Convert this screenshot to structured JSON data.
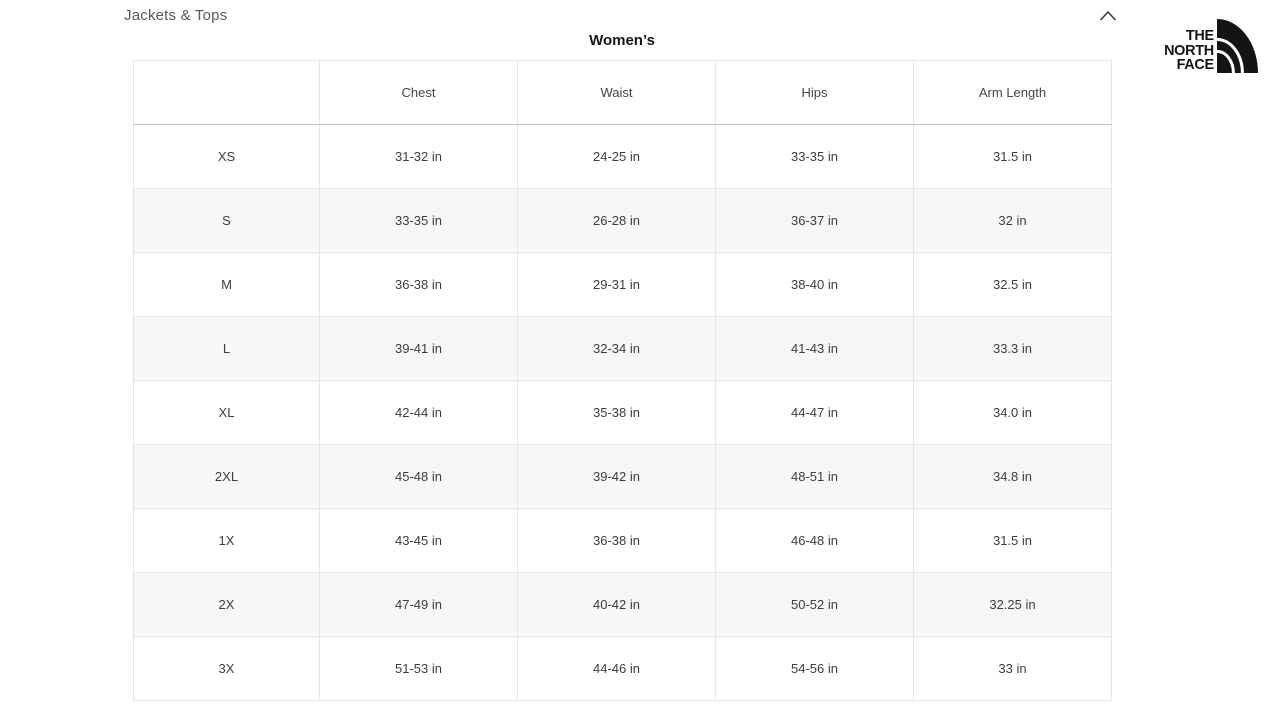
{
  "colors": {
    "stripe_row": "#f7f7f7",
    "cell_border": "#e5e5e5",
    "header_underline": "#c3c3c3",
    "table_text": "#3d3d3d",
    "section_title_text": "#58585a",
    "logo_black": "#141414"
  },
  "section": {
    "title": "Jackets & Tops",
    "collapse_icon": "chevron-up"
  },
  "table": {
    "title": "Women’s",
    "columns": [
      "",
      "Chest",
      "Waist",
      "Hips",
      "Arm Length"
    ],
    "rows": [
      {
        "size": "XS",
        "chest": "31-32 in",
        "waist": "24-25 in",
        "hips": "33-35 in",
        "arm_length": "31.5 in"
      },
      {
        "size": "S",
        "chest": "33-35 in",
        "waist": "26-28 in",
        "hips": "36-37 in",
        "arm_length": "32 in"
      },
      {
        "size": "M",
        "chest": "36-38 in",
        "waist": "29-31 in",
        "hips": "38-40 in",
        "arm_length": "32.5 in"
      },
      {
        "size": "L",
        "chest": "39-41 in",
        "waist": "32-34 in",
        "hips": "41-43 in",
        "arm_length": "33.3 in"
      },
      {
        "size": "XL",
        "chest": "42-44 in",
        "waist": "35-38 in",
        "hips": "44-47 in",
        "arm_length": "34.0 in"
      },
      {
        "size": "2XL",
        "chest": "45-48 in",
        "waist": "39-42 in",
        "hips": "48-51 in",
        "arm_length": "34.8 in"
      },
      {
        "size": "1X",
        "chest": "43-45 in",
        "waist": "36-38 in",
        "hips": "46-48 in",
        "arm_length": "31.5 in"
      },
      {
        "size": "2X",
        "chest": "47-49 in",
        "waist": "40-42 in",
        "hips": "50-52 in",
        "arm_length": "32.25 in"
      },
      {
        "size": "3X",
        "chest": "51-53 in",
        "waist": "44-46 in",
        "hips": "54-56 in",
        "arm_length": "33 in"
      }
    ]
  },
  "logo": {
    "name": "The North Face",
    "lines": [
      "THE",
      "NORTH",
      "FACE"
    ]
  }
}
